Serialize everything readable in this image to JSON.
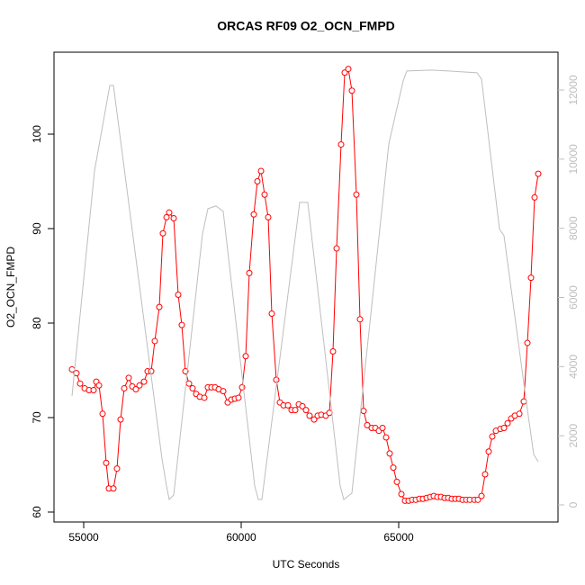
{
  "chart_data": {
    "type": "line",
    "title": "ORCAS RF09 O2_OCN_FMPD",
    "xlabel": "UTC Seconds",
    "ylabel": "O2_OCN_FMPD",
    "xlim": [
      54057,
      70057
    ],
    "xticks": [
      55000,
      60000,
      65000
    ],
    "ylim": [
      58.95,
      108.67
    ],
    "yticks": [
      60,
      70,
      80,
      90,
      100
    ],
    "y2lim": [
      -495,
      13094
    ],
    "y2ticks": [
      0,
      2000,
      4000,
      6000,
      8000,
      10000,
      12000
    ],
    "series": [
      {
        "color": "#ff0000",
        "marker": "circle",
        "x": [
          54629,
          54771,
          54886,
          55029,
          55171,
          55314,
          55400,
          55486,
          55600,
          55714,
          55800,
          55943,
          56057,
          56171,
          56286,
          56429,
          56543,
          56657,
          56771,
          56914,
          57029,
          57143,
          57257,
          57400,
          57514,
          57629,
          57714,
          57857,
          58000,
          58114,
          58229,
          58343,
          58457,
          58571,
          58686,
          58829,
          58943,
          59057,
          59171,
          59286,
          59429,
          59571,
          59686,
          59800,
          59914,
          60029,
          60143,
          60257,
          60400,
          60514,
          60629,
          60743,
          60857,
          60971,
          61114,
          61229,
          61343,
          61486,
          61600,
          61714,
          61829,
          61943,
          62057,
          62171,
          62314,
          62429,
          62543,
          62686,
          62800,
          62914,
          63029,
          63171,
          63286,
          63400,
          63514,
          63657,
          63771,
          63886,
          64000,
          64143,
          64257,
          64371,
          64486,
          64600,
          64714,
          64829,
          64943,
          65086,
          65200,
          65314,
          65429,
          65543,
          65657,
          65771,
          65886,
          66000,
          66114,
          66229,
          66343,
          66457,
          66571,
          66686,
          66800,
          66914,
          67029,
          67143,
          67257,
          67400,
          67514,
          67629,
          67743,
          67857,
          67971,
          68086,
          68229,
          68343,
          68457,
          68571,
          68686,
          68829,
          68971,
          69086,
          69200,
          69314,
          69429
        ],
        "values": [
          75.1,
          74.7,
          73.6,
          73.1,
          72.9,
          72.9,
          73.8,
          73.4,
          70.4,
          65.2,
          62.5,
          62.5,
          64.6,
          69.8,
          73.1,
          74.2,
          73.3,
          73.0,
          73.4,
          73.8,
          74.9,
          74.9,
          78.1,
          81.7,
          89.5,
          91.2,
          91.7,
          91.1,
          83.0,
          79.8,
          74.9,
          73.6,
          73.1,
          72.5,
          72.2,
          72.1,
          73.2,
          73.2,
          73.2,
          73.0,
          72.8,
          71.6,
          71.9,
          72.0,
          72.1,
          73.2,
          76.5,
          85.3,
          91.5,
          95.0,
          96.1,
          93.6,
          91.2,
          81.0,
          74.0,
          71.6,
          71.3,
          71.3,
          70.8,
          70.8,
          71.4,
          71.2,
          70.8,
          70.2,
          69.8,
          70.2,
          70.3,
          70.2,
          70.5,
          77.0,
          87.9,
          98.9,
          106.5,
          106.9,
          104.6,
          93.6,
          80.4,
          70.7,
          69.2,
          68.9,
          68.9,
          68.6,
          68.9,
          67.9,
          66.2,
          64.7,
          63.2,
          61.9,
          61.2,
          61.2,
          61.3,
          61.3,
          61.4,
          61.4,
          61.5,
          61.6,
          61.7,
          61.6,
          61.6,
          61.5,
          61.5,
          61.4,
          61.4,
          61.4,
          61.3,
          61.3,
          61.3,
          61.3,
          61.3,
          61.7,
          64.0,
          66.4,
          68.0,
          68.6,
          68.8,
          68.9,
          69.4,
          69.9,
          70.2,
          70.4,
          71.7,
          77.9,
          84.8,
          93.3,
          95.8
        ]
      },
      {
        "color": "#bebebe",
        "axis": "y2",
        "x": [
          54629,
          55343,
          55829,
          55943,
          57486,
          57629,
          57714,
          57857,
          58771,
          58943,
          59200,
          59429,
          60429,
          60543,
          60657,
          61857,
          62114,
          63143,
          63257,
          63514,
          64686,
          65143,
          65257,
          66057,
          67486,
          67629,
          68200,
          68343,
          69057,
          69286,
          69429
        ],
        "values": [
          3151,
          9661,
          12135,
          12135,
          1328,
          547,
          156,
          286,
          7839,
          8568,
          8646,
          8490,
          547,
          156,
          156,
          8750,
          8750,
          547,
          156,
          339,
          10443,
          12266,
          12552,
          12578,
          12500,
          12318,
          7969,
          7786,
          2943,
          1458,
          1250
        ]
      }
    ]
  }
}
